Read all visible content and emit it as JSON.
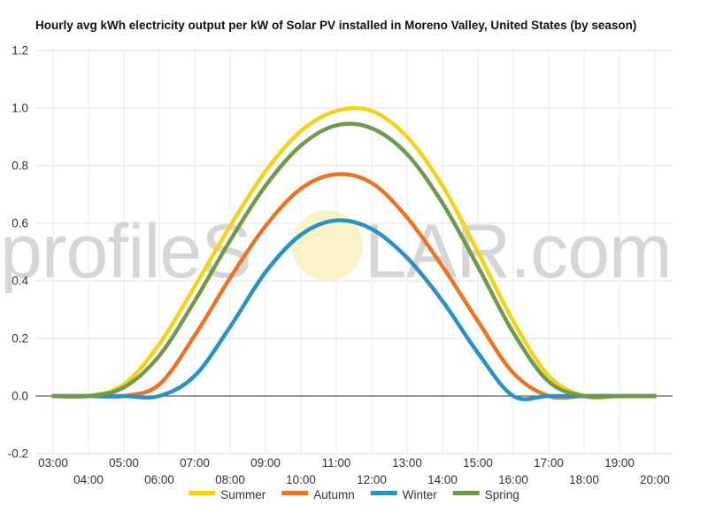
{
  "chart_data": {
    "type": "line",
    "title": "Hourly avg kWh electricity output per kW of Solar PV installed in Moreno Valley, United States (by season)",
    "xlabel": "",
    "ylabel": "",
    "x": [
      3,
      4,
      5,
      6,
      7,
      8,
      9,
      10,
      11,
      12,
      13,
      14,
      15,
      16,
      17,
      18,
      19,
      20
    ],
    "x_tick_labels": [
      "03:00",
      "04:00",
      "05:00",
      "06:00",
      "07:00",
      "08:00",
      "09:00",
      "10:00",
      "11:00",
      "12:00",
      "13:00",
      "14:00",
      "15:00",
      "16:00",
      "17:00",
      "18:00",
      "19:00",
      "20:00"
    ],
    "ylim": [
      -0.2,
      1.2
    ],
    "y_ticks": [
      -0.2,
      0.0,
      0.2,
      0.4,
      0.6,
      0.8,
      1.0,
      1.2
    ],
    "y_tick_labels": [
      "-0.2",
      "0.0",
      "0.2",
      "0.4",
      "0.6",
      "0.8",
      "1.0",
      "1.2"
    ],
    "grid": true,
    "legend_position": "bottom",
    "series": [
      {
        "name": "Summer",
        "color": "#f2d21b",
        "values": [
          0.0,
          0.0,
          0.04,
          0.18,
          0.38,
          0.59,
          0.78,
          0.92,
          0.99,
          0.99,
          0.9,
          0.73,
          0.5,
          0.26,
          0.07,
          0.0,
          0.0,
          0.0
        ]
      },
      {
        "name": "Autumn",
        "color": "#e8742a",
        "values": [
          0.0,
          0.0,
          0.0,
          0.04,
          0.21,
          0.41,
          0.59,
          0.72,
          0.77,
          0.74,
          0.62,
          0.45,
          0.26,
          0.08,
          0.0,
          0.0,
          0.0,
          0.0
        ]
      },
      {
        "name": "Winter",
        "color": "#2a91c2",
        "values": [
          0.0,
          0.0,
          0.0,
          0.0,
          0.07,
          0.24,
          0.43,
          0.56,
          0.61,
          0.58,
          0.48,
          0.33,
          0.15,
          0.0,
          0.0,
          0.0,
          0.0,
          0.0
        ]
      },
      {
        "name": "Spring",
        "color": "#6f9a4e",
        "values": [
          0.0,
          0.0,
          0.03,
          0.14,
          0.33,
          0.54,
          0.73,
          0.87,
          0.94,
          0.93,
          0.84,
          0.67,
          0.45,
          0.22,
          0.05,
          0.0,
          0.0,
          0.0
        ]
      }
    ]
  },
  "watermark": {
    "left_text": "profileS",
    "right_text": "LAR.com"
  }
}
